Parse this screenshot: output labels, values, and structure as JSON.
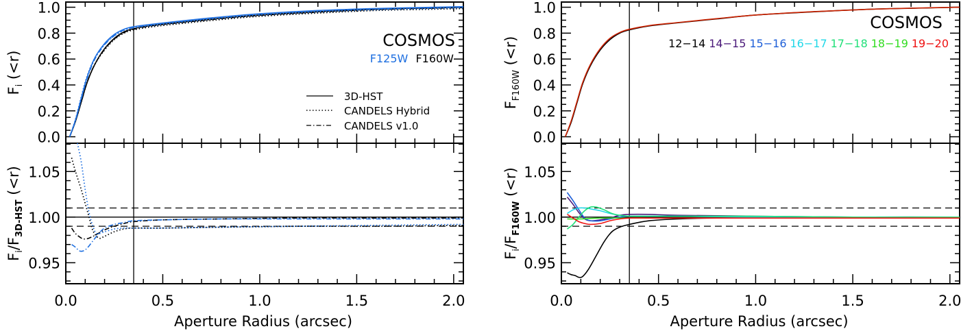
{
  "chart_data": [
    {
      "type": "line",
      "panel": "left",
      "field_label": "COSMOS",
      "filter_labels": [
        {
          "text": "F125W",
          "color": "#1e6fe0"
        },
        {
          "text": "F160W",
          "color": "#000000"
        }
      ],
      "xlabel": "Aperture Radius (arcsec)",
      "xlim": [
        0.0,
        2.05
      ],
      "xticks": [
        "0.0",
        "0.5",
        "1.0",
        "1.5",
        "2.0"
      ],
      "xtick_values": [
        0.0,
        0.5,
        1.0,
        1.5,
        2.0
      ],
      "vline_x": 0.35,
      "legend": {
        "position": "center-right",
        "entries": [
          {
            "label": "3D-HST",
            "style": "solid"
          },
          {
            "label": "CANDELS Hybrid",
            "style": "dotted"
          },
          {
            "label": "CANDELS v1.0",
            "style": "dashdot"
          }
        ]
      },
      "top": {
        "ylabel": "F_i (<r)",
        "ylabel_main": "F",
        "ylabel_sub": "i",
        "ylabel_tail": " (<r)",
        "ylim": [
          -0.05,
          1.04
        ],
        "yticks": [
          "0.0",
          "0.2",
          "0.4",
          "0.6",
          "0.8",
          "1.0"
        ],
        "ytick_values": [
          0.0,
          0.2,
          0.4,
          0.6,
          0.8,
          1.0
        ],
        "series": [
          {
            "name": "F160W 3D-HST",
            "color": "#000000",
            "style": "solid",
            "x": [
              0.02,
              0.05,
              0.08,
              0.11,
              0.15,
              0.2,
              0.25,
              0.3,
              0.35,
              0.45,
              0.6,
              0.8,
              1.0,
              1.3,
              1.6,
              1.9,
              2.05
            ],
            "y": [
              0.0,
              0.12,
              0.27,
              0.42,
              0.56,
              0.68,
              0.76,
              0.81,
              0.835,
              0.86,
              0.885,
              0.915,
              0.94,
              0.965,
              0.985,
              0.995,
              1.0
            ]
          },
          {
            "name": "F160W CANDELS Hybrid",
            "color": "#000000",
            "style": "dotted",
            "x": [
              0.02,
              0.05,
              0.08,
              0.11,
              0.15,
              0.2,
              0.25,
              0.3,
              0.35,
              0.45,
              0.6,
              0.8,
              1.0,
              1.3,
              1.6,
              1.9,
              2.05
            ],
            "y": [
              0.0,
              0.12,
              0.27,
              0.42,
              0.56,
              0.67,
              0.75,
              0.8,
              0.825,
              0.85,
              0.875,
              0.905,
              0.93,
              0.955,
              0.975,
              0.985,
              0.99
            ]
          },
          {
            "name": "F160W CANDELS v1.0",
            "color": "#000000",
            "style": "dashdot",
            "x": [
              0.02,
              0.05,
              0.08,
              0.11,
              0.15,
              0.2,
              0.25,
              0.3,
              0.35,
              0.45,
              0.6,
              0.8,
              1.0,
              1.3,
              1.6,
              1.9,
              2.05
            ],
            "y": [
              0.0,
              0.12,
              0.27,
              0.42,
              0.56,
              0.675,
              0.755,
              0.805,
              0.83,
              0.858,
              0.882,
              0.912,
              0.937,
              0.962,
              0.982,
              0.992,
              0.997
            ]
          },
          {
            "name": "F125W 3D-HST",
            "color": "#1e6fe0",
            "style": "solid",
            "x": [
              0.02,
              0.05,
              0.08,
              0.11,
              0.15,
              0.2,
              0.25,
              0.3,
              0.35,
              0.45,
              0.6,
              0.8,
              1.0,
              1.3,
              1.6,
              1.9,
              2.05
            ],
            "y": [
              0.0,
              0.13,
              0.3,
              0.46,
              0.61,
              0.72,
              0.79,
              0.83,
              0.85,
              0.87,
              0.895,
              0.925,
              0.95,
              0.975,
              0.99,
              1.0,
              1.005
            ]
          },
          {
            "name": "F125W CANDELS Hybrid",
            "color": "#1e6fe0",
            "style": "dotted",
            "x": [
              0.02,
              0.05,
              0.08,
              0.11,
              0.15,
              0.2,
              0.25,
              0.3,
              0.35,
              0.45,
              0.6,
              0.8,
              1.0,
              1.3,
              1.6,
              1.9,
              2.05
            ],
            "y": [
              0.0,
              0.135,
              0.31,
              0.47,
              0.61,
              0.715,
              0.78,
              0.82,
              0.84,
              0.86,
              0.885,
              0.915,
              0.94,
              0.965,
              0.98,
              0.99,
              0.995
            ]
          },
          {
            "name": "F125W CANDELS v1.0",
            "color": "#1e6fe0",
            "style": "dashdot",
            "x": [
              0.02,
              0.05,
              0.08,
              0.11,
              0.15,
              0.2,
              0.25,
              0.3,
              0.35,
              0.45,
              0.6,
              0.8,
              1.0,
              1.3,
              1.6,
              1.9,
              2.05
            ],
            "y": [
              0.0,
              0.125,
              0.29,
              0.45,
              0.6,
              0.71,
              0.78,
              0.825,
              0.845,
              0.867,
              0.892,
              0.922,
              0.947,
              0.972,
              0.988,
              0.998,
              1.003
            ]
          }
        ]
      },
      "bottom": {
        "ylabel": "F_i/F_3D-HST (<r)",
        "ylabel_main": "F",
        "ylabel_sub": "i",
        "ylabel_mid": "/F",
        "ylabel_sub2": "3D-HST",
        "ylabel_tail": " (<r)",
        "ylim": [
          0.927,
          1.081
        ],
        "yticks": [
          "0.95",
          "1.00",
          "1.05"
        ],
        "ytick_values": [
          0.95,
          1.0,
          1.05
        ],
        "hlines": [
          {
            "y": 1.0,
            "style": "solid"
          },
          {
            "y": 1.01,
            "style": "dashed"
          },
          {
            "y": 0.99,
            "style": "dashed"
          }
        ],
        "series": [
          {
            "name": "F160W CANDELS Hybrid",
            "color": "#000000",
            "style": "dotted",
            "x": [
              0.03,
              0.05,
              0.08,
              0.1,
              0.12,
              0.14,
              0.17,
              0.2,
              0.25,
              0.3,
              0.35,
              0.5,
              0.8,
              1.2,
              1.6,
              2.05
            ],
            "y": [
              1.065,
              1.05,
              1.03,
              1.015,
              1.0,
              0.985,
              0.977,
              0.979,
              0.984,
              0.987,
              0.988,
              0.988,
              0.989,
              0.99,
              0.99,
              0.991
            ]
          },
          {
            "name": "F160W CANDELS v1.0",
            "color": "#000000",
            "style": "dashdot",
            "x": [
              0.03,
              0.05,
              0.08,
              0.1,
              0.12,
              0.15,
              0.2,
              0.25,
              0.3,
              0.35,
              0.5,
              0.8,
              1.2,
              1.6,
              2.05
            ],
            "y": [
              0.988,
              0.982,
              0.977,
              0.976,
              0.977,
              0.98,
              0.986,
              0.99,
              0.993,
              0.995,
              0.997,
              0.998,
              0.999,
              0.999,
              0.999
            ]
          },
          {
            "name": "F125W CANDELS Hybrid",
            "color": "#1e6fe0",
            "style": "dotted",
            "x": [
              0.06,
              0.08,
              0.1,
              0.12,
              0.14,
              0.16,
              0.2,
              0.25,
              0.3,
              0.35,
              0.5,
              0.8,
              1.2,
              1.6,
              2.05
            ],
            "y": [
              1.081,
              1.06,
              1.03,
              1.005,
              0.99,
              0.982,
              0.984,
              0.987,
              0.988,
              0.988,
              0.988,
              0.989,
              0.99,
              0.991,
              0.992
            ]
          },
          {
            "name": "F125W CANDELS v1.0",
            "color": "#1e6fe0",
            "style": "dashdot",
            "x": [
              0.03,
              0.05,
              0.07,
              0.09,
              0.11,
              0.14,
              0.17,
              0.2,
              0.25,
              0.3,
              0.35,
              0.5,
              0.8,
              1.2,
              1.6,
              2.05
            ],
            "y": [
              0.97,
              0.967,
              0.963,
              0.963,
              0.966,
              0.974,
              0.982,
              0.988,
              0.992,
              0.994,
              0.996,
              0.997,
              0.998,
              0.998,
              0.998,
              0.998
            ]
          }
        ]
      }
    },
    {
      "type": "line",
      "panel": "right",
      "field_label": "COSMOS",
      "xlabel": "Aperture Radius (arcsec)",
      "xlim": [
        0.0,
        2.05
      ],
      "xticks": [
        "0.0",
        "0.5",
        "1.0",
        "1.5",
        "2.0"
      ],
      "xtick_values": [
        0.0,
        0.5,
        1.0,
        1.5,
        2.0
      ],
      "vline_x": 0.35,
      "magnitude_bins": [
        {
          "label": "12−14",
          "color": "#000000"
        },
        {
          "label": "14−15",
          "color": "#4b1a7a"
        },
        {
          "label": "15−16",
          "color": "#1e5fd8"
        },
        {
          "label": "16−17",
          "color": "#22d8e8"
        },
        {
          "label": "17−18",
          "color": "#22e07a"
        },
        {
          "label": "18−19",
          "color": "#33dd22"
        },
        {
          "label": "19−20",
          "color": "#ee1111"
        }
      ],
      "top": {
        "ylabel": "F_F160W (<r)",
        "ylabel_main": "F",
        "ylabel_sub": "F160W",
        "ylabel_tail": " (<r)",
        "ylim": [
          -0.05,
          1.04
        ],
        "yticks": [
          "0.0",
          "0.2",
          "0.4",
          "0.6",
          "0.8",
          "1.0"
        ],
        "ytick_values": [
          0.0,
          0.2,
          0.4,
          0.6,
          0.8,
          1.0
        ],
        "series": [
          {
            "name": "12-14",
            "color": "#000000",
            "x": [
              0.02,
              0.05,
              0.08,
              0.11,
              0.15,
              0.2,
              0.25,
              0.3,
              0.35,
              0.45,
              0.6,
              0.8,
              1.0,
              1.3,
              1.6,
              1.9,
              2.05
            ],
            "y": [
              0.0,
              0.11,
              0.26,
              0.41,
              0.55,
              0.67,
              0.75,
              0.8,
              0.825,
              0.855,
              0.88,
              0.91,
              0.94,
              0.965,
              0.985,
              0.995,
              1.0
            ]
          },
          {
            "name": "19-20",
            "color": "#cc2200",
            "x": [
              0.02,
              0.05,
              0.08,
              0.11,
              0.15,
              0.2,
              0.25,
              0.3,
              0.35,
              0.45,
              0.6,
              0.8,
              1.0,
              1.3,
              1.6,
              1.9,
              2.05
            ],
            "y": [
              0.0,
              0.12,
              0.27,
              0.42,
              0.56,
              0.68,
              0.76,
              0.805,
              0.83,
              0.858,
              0.882,
              0.912,
              0.94,
              0.966,
              0.985,
              0.996,
              1.0
            ]
          }
        ]
      },
      "bottom": {
        "ylabel": "F_i/F_F160W (<r)",
        "ylabel_main": "F",
        "ylabel_sub": "i",
        "ylabel_mid": "/F",
        "ylabel_sub2": "F160W",
        "ylabel_tail": " (<r)",
        "ylim": [
          0.927,
          1.081
        ],
        "yticks": [
          "0.95",
          "1.00",
          "1.05"
        ],
        "ytick_values": [
          0.95,
          1.0,
          1.05
        ],
        "hlines": [
          {
            "y": 1.0,
            "style": "solid"
          },
          {
            "y": 1.01,
            "style": "dashed"
          },
          {
            "y": 0.99,
            "style": "dashed"
          }
        ],
        "series": [
          {
            "name": "12-14",
            "color": "#000000",
            "x": [
              0.03,
              0.05,
              0.07,
              0.09,
              0.11,
              0.14,
              0.18,
              0.22,
              0.26,
              0.3,
              0.35,
              0.45,
              0.6,
              0.8,
              1.2,
              1.6,
              2.05
            ],
            "y": [
              0.939,
              0.937,
              0.936,
              0.934,
              0.935,
              0.943,
              0.958,
              0.973,
              0.984,
              0.989,
              0.992,
              0.996,
              0.998,
              0.999,
              0.999,
              1.0,
              1.0
            ]
          },
          {
            "name": "14-15",
            "color": "#4b1a7a",
            "x": [
              0.03,
              0.06,
              0.09,
              0.12,
              0.15,
              0.2,
              0.25,
              0.3,
              0.35,
              0.45,
              0.6,
              1.0,
              1.5,
              2.05
            ],
            "y": [
              1.022,
              1.014,
              1.005,
              0.998,
              0.996,
              0.997,
              0.999,
              1.002,
              1.003,
              1.003,
              1.002,
              1.001,
              1.0,
              1.0
            ]
          },
          {
            "name": "15-16",
            "color": "#1e5fd8",
            "x": [
              0.03,
              0.06,
              0.09,
              0.12,
              0.15,
              0.2,
              0.25,
              0.3,
              0.35,
              0.45,
              0.6,
              1.0,
              1.5,
              2.05
            ],
            "y": [
              1.027,
              1.018,
              1.008,
              0.999,
              0.996,
              0.996,
              0.998,
              1.0,
              1.001,
              1.001,
              1.001,
              1.0,
              1.0,
              1.0
            ]
          },
          {
            "name": "16-17",
            "color": "#22d8e8",
            "x": [
              0.03,
              0.06,
              0.09,
              0.12,
              0.15,
              0.2,
              0.25,
              0.3,
              0.35,
              0.45,
              0.6,
              1.0,
              1.5,
              2.05
            ],
            "y": [
              1.004,
              1.008,
              1.01,
              1.01,
              1.009,
              1.007,
              1.004,
              1.002,
              1.001,
              1.001,
              1.001,
              1.0,
              1.0,
              1.0
            ]
          },
          {
            "name": "17-18",
            "color": "#22e07a",
            "x": [
              0.03,
              0.06,
              0.09,
              0.12,
              0.15,
              0.18,
              0.22,
              0.26,
              0.3,
              0.35,
              0.45,
              0.6,
              1.0,
              1.5,
              2.05
            ],
            "y": [
              0.987,
              0.992,
              1.0,
              1.007,
              1.011,
              1.011,
              1.008,
              1.004,
              1.002,
              1.001,
              1.001,
              1.001,
              1.001,
              1.0,
              1.0
            ]
          },
          {
            "name": "18-19",
            "color": "#33dd22",
            "x": [
              0.03,
              0.1,
              0.2,
              0.35,
              0.6,
              1.0,
              1.5,
              2.05
            ],
            "y": [
              0.998,
              0.998,
              0.999,
              0.999,
              0.999,
              0.999,
              0.999,
              0.999
            ]
          },
          {
            "name": "19-20",
            "color": "#ee1111",
            "x": [
              0.03,
              0.06,
              0.09,
              0.12,
              0.15,
              0.2,
              0.25,
              0.3,
              0.35,
              0.45,
              0.6,
              1.0,
              1.5,
              2.05
            ],
            "y": [
              1.003,
              0.999,
              0.995,
              0.993,
              0.992,
              0.993,
              0.996,
              0.998,
              0.999,
              0.999,
              0.999,
              0.999,
              0.999,
              0.999
            ]
          }
        ]
      }
    }
  ]
}
